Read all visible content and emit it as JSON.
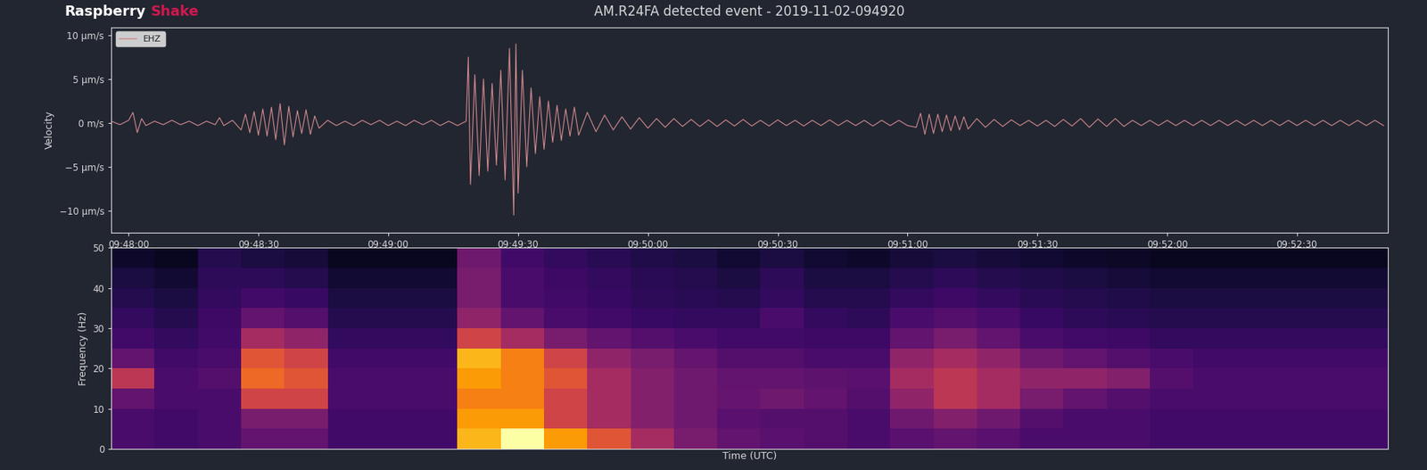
{
  "brand": [
    "Raspberry",
    "Shake"
  ],
  "title": "AM.R24FA detected event - 2019-11-02-094920",
  "chart_data": [
    {
      "type": "line",
      "ylabel": "Velocity",
      "x": [
        35276,
        35278,
        35280,
        35281,
        35282,
        35283,
        35284,
        35286,
        35288,
        35290,
        35292,
        35294,
        35296,
        35298,
        35300,
        35301,
        35302,
        35304,
        35306,
        35307,
        35308,
        35309,
        35310,
        35311,
        35312,
        35313,
        35314,
        35315,
        35316,
        35317,
        35318,
        35319,
        35320,
        35321,
        35322,
        35323,
        35324,
        35326,
        35328,
        35330,
        35332,
        35334,
        35336,
        35338,
        35340,
        35342,
        35344,
        35346,
        35348,
        35350,
        35352,
        35354,
        35356,
        35358,
        35358.5,
        35359,
        35360,
        35361,
        35362,
        35363,
        35364,
        35365,
        35366,
        35367,
        35368,
        35369,
        35369.5,
        35370,
        35371,
        35372,
        35373,
        35374,
        35375,
        35376,
        35377,
        35378,
        35379,
        35380,
        35381,
        35382,
        35383,
        35384,
        35386,
        35388,
        35390,
        35392,
        35394,
        35396,
        35398,
        35400,
        35402,
        35404,
        35406,
        35408,
        35410,
        35412,
        35414,
        35416,
        35418,
        35420,
        35422,
        35424,
        35426,
        35428,
        35430,
        35432,
        35434,
        35436,
        35438,
        35440,
        35442,
        35444,
        35446,
        35448,
        35450,
        35452,
        35454,
        35456,
        35458,
        35460,
        35462,
        35463,
        35464,
        35465,
        35466,
        35467,
        35468,
        35469,
        35470,
        35471,
        35472,
        35473,
        35474,
        35476,
        35478,
        35480,
        35482,
        35484,
        35486,
        35488,
        35490,
        35492,
        35494,
        35496,
        35498,
        35500,
        35502,
        35504,
        35506,
        35508,
        35510,
        35512,
        35514,
        35516,
        35518,
        35520,
        35522,
        35524,
        35526,
        35528,
        35530,
        35532,
        35534,
        35536,
        35538,
        35540,
        35542,
        35544,
        35546,
        35548,
        35550,
        35552,
        35554,
        35556,
        35558,
        35560,
        35562,
        35564,
        35566,
        35568,
        35570
      ],
      "series": [
        {
          "name": "EHZ",
          "color": "#d08a8c",
          "values": [
            0.2,
            -0.2,
            0.3,
            1.2,
            -1.1,
            0.5,
            -0.3,
            0.2,
            -0.2,
            0.3,
            -0.2,
            0.2,
            -0.3,
            0.2,
            -0.2,
            0.6,
            -0.3,
            0.3,
            -0.8,
            1.0,
            -1.1,
            1.3,
            -1.4,
            1.6,
            -1.5,
            1.8,
            -1.9,
            2.2,
            -2.5,
            1.9,
            -1.6,
            1.4,
            -1.2,
            1.5,
            -1.3,
            0.8,
            -0.6,
            0.3,
            -0.3,
            0.2,
            -0.3,
            0.3,
            -0.2,
            0.3,
            -0.3,
            0.2,
            -0.3,
            0.3,
            -0.2,
            0.3,
            -0.3,
            0.2,
            -0.3,
            0.2,
            7.5,
            -7.0,
            5.5,
            -6.0,
            5.0,
            -5.5,
            4.5,
            -4.8,
            6.0,
            -6.5,
            8.5,
            -10.5,
            9.0,
            -8.0,
            6.0,
            -5.0,
            4.0,
            -3.5,
            3.0,
            -3.0,
            2.5,
            -2.2,
            2.0,
            -2.0,
            1.6,
            -1.5,
            1.8,
            -1.4,
            1.2,
            -1.0,
            0.9,
            -0.8,
            0.7,
            -0.7,
            0.6,
            -0.6,
            0.5,
            -0.5,
            0.5,
            -0.4,
            0.4,
            -0.4,
            0.35,
            -0.4,
            0.35,
            -0.35,
            0.4,
            -0.35,
            0.3,
            -0.35,
            0.35,
            -0.3,
            0.3,
            -0.35,
            0.3,
            -0.3,
            0.35,
            -0.3,
            0.3,
            -0.3,
            0.3,
            -0.35,
            0.3,
            -0.3,
            0.3,
            -0.3,
            -0.5,
            1.1,
            -1.3,
            1.0,
            -1.2,
            1.0,
            -1.0,
            0.9,
            -0.9,
            0.8,
            -0.8,
            0.7,
            -0.7,
            0.5,
            -0.5,
            0.4,
            -0.4,
            0.35,
            -0.3,
            0.3,
            -0.35,
            0.3,
            -0.4,
            0.4,
            -0.35,
            0.5,
            -0.5,
            0.45,
            -0.4,
            0.5,
            -0.4,
            0.3,
            -0.3,
            0.3,
            -0.3,
            0.3,
            -0.3,
            0.3,
            -0.3,
            0.3,
            -0.3,
            0.3,
            -0.3,
            0.3,
            -0.3,
            0.3,
            -0.3,
            0.3,
            -0.3,
            0.3,
            -0.3,
            0.3,
            -0.3,
            0.3,
            -0.3,
            0.3,
            -0.3,
            0.3,
            -0.3,
            0.3,
            -0.3
          ]
        }
      ],
      "xlim": [
        35276,
        35571
      ],
      "xticks": [
        {
          "value": 35280,
          "label": "09:48:00"
        },
        {
          "value": 35310,
          "label": "09:48:30"
        },
        {
          "value": 35340,
          "label": "09:49:00"
        },
        {
          "value": 35370,
          "label": "09:49:30"
        },
        {
          "value": 35400,
          "label": "09:50:00"
        },
        {
          "value": 35430,
          "label": "09:50:30"
        },
        {
          "value": 35460,
          "label": "09:51:00"
        },
        {
          "value": 35490,
          "label": "09:51:30"
        },
        {
          "value": 35520,
          "label": "09:52:00"
        },
        {
          "value": 35550,
          "label": "09:52:30"
        }
      ],
      "ylim": [
        -12.5,
        10.9
      ],
      "yticks": [
        {
          "value": -10,
          "label": "−10 µm/s"
        },
        {
          "value": -5,
          "label": "−5 µm/s"
        },
        {
          "value": 0,
          "label": "0 m/s"
        },
        {
          "value": 5,
          "label": "5 µm/s"
        },
        {
          "value": 10,
          "label": "10 µm/s"
        }
      ],
      "legend": "upper left"
    },
    {
      "type": "heatmap",
      "xlabel": "Time (UTC)",
      "ylabel": "Frequency (Hz)",
      "xlim": [
        35276,
        35571
      ],
      "ylim": [
        0,
        50
      ],
      "yticks": [
        0,
        10,
        20,
        30,
        40,
        50
      ],
      "tick_labels": "y",
      "x_edges": [
        35276,
        35286,
        35296,
        35306,
        35316,
        35326,
        35336,
        35346,
        35356,
        35366,
        35376,
        35386,
        35396,
        35406,
        35416,
        35426,
        35436,
        35446,
        35456,
        35466,
        35476,
        35486,
        35496,
        35506,
        35516,
        35526,
        35536,
        35546,
        35556,
        35566,
        35576
      ],
      "y_edges": [
        0,
        5,
        10,
        15,
        20,
        25,
        30,
        35,
        40,
        45,
        50
      ],
      "value_range": [
        0.1,
        1.0
      ],
      "cells": [
        [
          0.3,
          0.28,
          0.3,
          0.35,
          0.35,
          0.28,
          0.28,
          0.28,
          0.85,
          1.0,
          0.8,
          0.65,
          0.5,
          0.4,
          0.35,
          0.33,
          0.32,
          0.3,
          0.33,
          0.35,
          0.33,
          0.3,
          0.3,
          0.3,
          0.28,
          0.28,
          0.28,
          0.28,
          0.28,
          0.28
        ],
        [
          0.3,
          0.28,
          0.3,
          0.4,
          0.4,
          0.28,
          0.28,
          0.28,
          0.8,
          0.8,
          0.6,
          0.5,
          0.42,
          0.38,
          0.33,
          0.32,
          0.32,
          0.3,
          0.38,
          0.42,
          0.38,
          0.32,
          0.3,
          0.3,
          0.28,
          0.28,
          0.28,
          0.28,
          0.28,
          0.28
        ],
        [
          0.35,
          0.3,
          0.3,
          0.6,
          0.6,
          0.3,
          0.3,
          0.3,
          0.75,
          0.75,
          0.6,
          0.5,
          0.42,
          0.38,
          0.36,
          0.38,
          0.35,
          0.32,
          0.45,
          0.55,
          0.5,
          0.4,
          0.35,
          0.32,
          0.3,
          0.3,
          0.3,
          0.3,
          0.3,
          0.3
        ],
        [
          0.55,
          0.3,
          0.32,
          0.7,
          0.65,
          0.3,
          0.3,
          0.3,
          0.8,
          0.75,
          0.65,
          0.5,
          0.42,
          0.38,
          0.35,
          0.35,
          0.34,
          0.33,
          0.5,
          0.55,
          0.5,
          0.45,
          0.45,
          0.42,
          0.32,
          0.3,
          0.3,
          0.3,
          0.3,
          0.3
        ],
        [
          0.35,
          0.28,
          0.3,
          0.65,
          0.6,
          0.28,
          0.28,
          0.28,
          0.85,
          0.75,
          0.6,
          0.45,
          0.4,
          0.36,
          0.32,
          0.32,
          0.3,
          0.3,
          0.45,
          0.5,
          0.45,
          0.38,
          0.35,
          0.32,
          0.3,
          0.28,
          0.28,
          0.28,
          0.28,
          0.28
        ],
        [
          0.28,
          0.25,
          0.28,
          0.5,
          0.45,
          0.25,
          0.25,
          0.25,
          0.6,
          0.5,
          0.4,
          0.35,
          0.32,
          0.3,
          0.28,
          0.28,
          0.27,
          0.27,
          0.35,
          0.4,
          0.35,
          0.3,
          0.28,
          0.27,
          0.25,
          0.25,
          0.25,
          0.25,
          0.25,
          0.25
        ],
        [
          0.25,
          0.22,
          0.27,
          0.35,
          0.32,
          0.22,
          0.22,
          0.22,
          0.45,
          0.35,
          0.3,
          0.28,
          0.26,
          0.25,
          0.25,
          0.3,
          0.25,
          0.24,
          0.3,
          0.32,
          0.3,
          0.26,
          0.24,
          0.23,
          0.22,
          0.22,
          0.22,
          0.22,
          0.22,
          0.22
        ],
        [
          0.22,
          0.2,
          0.25,
          0.28,
          0.26,
          0.2,
          0.2,
          0.2,
          0.4,
          0.3,
          0.28,
          0.26,
          0.24,
          0.23,
          0.22,
          0.25,
          0.22,
          0.22,
          0.25,
          0.27,
          0.25,
          0.23,
          0.22,
          0.21,
          0.2,
          0.2,
          0.2,
          0.2,
          0.2,
          0.2
        ],
        [
          0.2,
          0.18,
          0.24,
          0.24,
          0.22,
          0.18,
          0.18,
          0.18,
          0.4,
          0.3,
          0.27,
          0.25,
          0.23,
          0.22,
          0.2,
          0.24,
          0.2,
          0.2,
          0.22,
          0.24,
          0.22,
          0.21,
          0.2,
          0.19,
          0.18,
          0.18,
          0.18,
          0.18,
          0.18,
          0.18
        ],
        [
          0.17,
          0.15,
          0.22,
          0.2,
          0.19,
          0.15,
          0.15,
          0.15,
          0.38,
          0.28,
          0.25,
          0.23,
          0.21,
          0.2,
          0.18,
          0.2,
          0.18,
          0.17,
          0.19,
          0.2,
          0.19,
          0.18,
          0.17,
          0.16,
          0.15,
          0.15,
          0.15,
          0.15,
          0.15,
          0.15
        ]
      ]
    }
  ]
}
